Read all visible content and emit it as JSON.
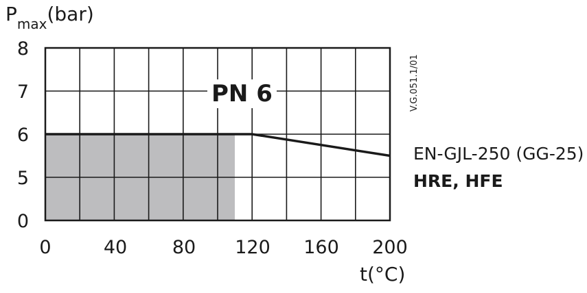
{
  "chart_data": {
    "type": "line",
    "ylabel_main": "P",
    "ylabel_sub": "max",
    "ylabel_unit": "(bar)",
    "xlabel": "t(°C)",
    "y_ticks": [
      "8",
      "7",
      "6",
      "5",
      "0"
    ],
    "x_ticks": [
      "0",
      "40",
      "80",
      "120",
      "160",
      "200"
    ],
    "x_range": [
      0,
      200
    ],
    "y_category_levels": [
      "0",
      "5",
      "6",
      "7",
      "8"
    ],
    "series": [
      {
        "x": [
          0,
          120,
          200
        ],
        "y": [
          6,
          6,
          5.5
        ]
      }
    ],
    "shaded_region": {
      "x": [
        0,
        110
      ],
      "y": [
        0,
        6
      ],
      "color": "#bdbdbf"
    },
    "grid": true,
    "annotation": "PN 6",
    "material_line": "EN-GJL-250 (GG-25)",
    "model_line": "HRE, HFE",
    "drawing_code": "V.G.051.1/01"
  },
  "colors": {
    "line": "#1a1a1a",
    "shade": "#bdbdbf",
    "grid": "#1a1a1a"
  }
}
